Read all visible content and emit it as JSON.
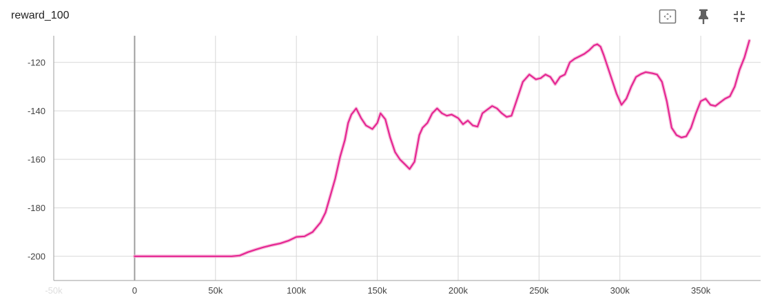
{
  "card": {
    "title": "reward_100",
    "toolbar": [
      {
        "name": "fit-domain-icon"
      },
      {
        "name": "pin-icon"
      },
      {
        "name": "collapse-icon"
      }
    ]
  },
  "colors": {
    "smoothed": "#e52592",
    "raw": "#f3a9d0",
    "grid": "#d7d7d7",
    "axis": "#9e9e9e"
  },
  "chart_data": {
    "type": "line",
    "title": "reward_100",
    "xlabel": "",
    "ylabel": "",
    "xlim": [
      -50000,
      387000
    ],
    "ylim": [
      -210,
      -109
    ],
    "grid": true,
    "x_ticks": [
      {
        "value": -50000,
        "label": "-50k"
      },
      {
        "value": 0,
        "label": "0"
      },
      {
        "value": 50000,
        "label": "50k"
      },
      {
        "value": 100000,
        "label": "100k"
      },
      {
        "value": 150000,
        "label": "150k"
      },
      {
        "value": 200000,
        "label": "200k"
      },
      {
        "value": 250000,
        "label": "250k"
      },
      {
        "value": 300000,
        "label": "300k"
      },
      {
        "value": 350000,
        "label": "350k"
      }
    ],
    "y_ticks": [
      {
        "value": -120,
        "label": "-120"
      },
      {
        "value": -140,
        "label": "-140"
      },
      {
        "value": -160,
        "label": "-160"
      },
      {
        "value": -180,
        "label": "-180"
      },
      {
        "value": -200,
        "label": "-200"
      }
    ],
    "series": [
      {
        "x": [
          0,
          20000,
          40000,
          60000,
          65000,
          70000,
          75000,
          80000,
          85000,
          90000,
          95000,
          100000,
          105000,
          110000,
          115000,
          118000,
          121000,
          124000,
          127000,
          130000,
          132000,
          134000,
          137000,
          140000,
          143000,
          147000,
          150000,
          152000,
          155000,
          158000,
          161000,
          164000,
          167000,
          170000,
          173000,
          176000,
          178000,
          181000,
          184000,
          187000,
          190000,
          193000,
          196000,
          200000,
          203000,
          206000,
          209000,
          212000,
          215000,
          218000,
          221000,
          224000,
          227000,
          230000,
          233000,
          236000,
          240000,
          244000,
          248000,
          251000,
          254000,
          257000,
          260000,
          263000,
          266000,
          269000,
          272000,
          275000,
          278000,
          281000,
          284000,
          286000,
          288000,
          290000,
          292000,
          295000,
          298000,
          301000,
          304000,
          307000,
          310000,
          313000,
          316000,
          320000,
          323000,
          326000,
          329000,
          332000,
          335000,
          338000,
          341000,
          344000,
          347000,
          350000,
          353000,
          356000,
          359000,
          362000,
          365000,
          368000,
          371000,
          374000,
          377000,
          380000
        ],
        "values": [
          -200,
          -200,
          -200,
          -200,
          -199.7,
          -198.3,
          -197.2,
          -196.2,
          -195.4,
          -194.7,
          -193.6,
          -192,
          -191.8,
          -190,
          -186,
          -182,
          -175,
          -168,
          -159,
          -152,
          -145,
          -141.5,
          -139,
          -143,
          -146,
          -147.5,
          -145,
          -141,
          -143.5,
          -151,
          -157,
          -160,
          -162,
          -164,
          -161,
          -150,
          -147,
          -145,
          -141,
          -139,
          -141,
          -142,
          -141.5,
          -143,
          -145.5,
          -144,
          -146,
          -146.5,
          -141,
          -139.5,
          -138,
          -139,
          -141,
          -142.5,
          -142,
          -136,
          -128,
          -125,
          -127,
          -126.5,
          -125,
          -126,
          -129,
          -126,
          -125,
          -120,
          -118.5,
          -117.5,
          -116.5,
          -115,
          -113,
          -112.5,
          -113.5,
          -117,
          -121,
          -127,
          -133,
          -137.5,
          -135,
          -130,
          -126,
          -124.8,
          -124,
          -124.5,
          -125,
          -128,
          -136,
          -147,
          -150,
          -151,
          -150.5,
          -147,
          -141,
          -136,
          -135,
          -137.5,
          -138,
          -136.5,
          -135,
          -134,
          -130,
          -123,
          -118,
          -111
        ]
      }
    ]
  }
}
